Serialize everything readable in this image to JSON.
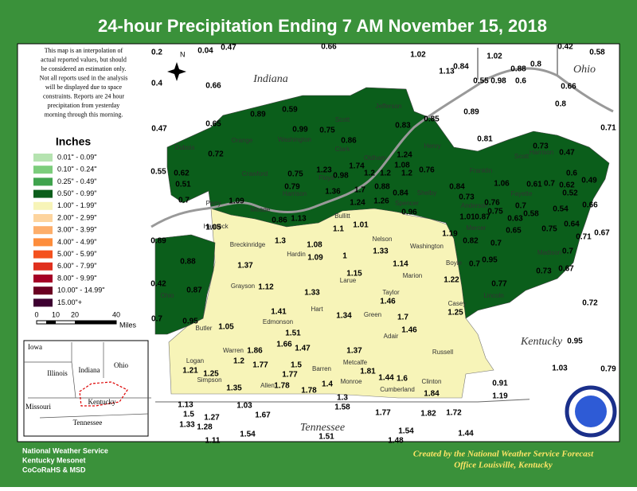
{
  "header": {
    "title": "24-hour Precipitation Ending 7 AM  November 15, 2018"
  },
  "disclaimer": [
    "This map is an interpolation of",
    "actual reported values, but should",
    "be considered an estimation only.",
    "Not all reports used in the analysis",
    "will be displayed due to space",
    "constraints. Reports are 24 hour",
    "precipitation from yesterday",
    "morning through this morning."
  ],
  "legend": {
    "title": "Inches",
    "items": [
      {
        "label": "0.01\" - 0.09\"",
        "color": "#b5e3b0"
      },
      {
        "label": "0.10\" - 0.24\"",
        "color": "#7ccd7c"
      },
      {
        "label": "0.25\" - 0.49\"",
        "color": "#3fa34d"
      },
      {
        "label": "0.50\" - 0.99\"",
        "color": "#0b5e1b"
      },
      {
        "label": "1.00\" - 1.99\"",
        "color": "#f7f4b8"
      },
      {
        "label": "2.00\" - 2.99\"",
        "color": "#fdd49e"
      },
      {
        "label": "3.00\" - 3.99\"",
        "color": "#fdae6b"
      },
      {
        "label": "4.00\" - 4.99\"",
        "color": "#fd8d3c"
      },
      {
        "label": "5.00\" - 5.99\"",
        "color": "#f4511e"
      },
      {
        "label": "6.00\" - 7.99\"",
        "color": "#e0301e"
      },
      {
        "label": "8.00\" - 9.99\"",
        "color": "#a50026"
      },
      {
        "label": "10.00\" - 14.99\"",
        "color": "#6b0022"
      },
      {
        "label": "15.00\"+",
        "color": "#3d0030"
      }
    ]
  },
  "scale": {
    "ticks": [
      "0",
      "10",
      "20",
      "40"
    ],
    "unit": "Miles"
  },
  "compass": "N",
  "states": [
    "Indiana",
    "Ohio",
    "Kentucky",
    "Tennessee"
  ],
  "inset": {
    "labels": [
      "Iowa",
      "Illinois",
      "Indiana",
      "Ohio",
      "Missouri",
      "Kentucky",
      "Tennessee"
    ]
  },
  "counties": [
    "Meade",
    "Bullitt",
    "Breckinridge",
    "Hardin",
    "Nelson",
    "Washington",
    "Grayson",
    "Larue",
    "Marion",
    "Taylor",
    "Hart",
    "Green",
    "Casey",
    "Edmonson",
    "Butler",
    "Adair",
    "Russell",
    "Logan",
    "Warren",
    "Barren",
    "Metcalfe",
    "Simpson",
    "Allen",
    "Monroe",
    "Cumberland",
    "Clinton",
    "Ohio",
    "Dubois",
    "Orange",
    "Washington",
    "Scott",
    "Jefferson",
    "Clark",
    "Floyd",
    "Oldham",
    "Henry",
    "Shelby",
    "Spencer",
    "Crawford",
    "Harrison",
    "Perry",
    "Hancock",
    "Franklin",
    "Anderson",
    "Mercer",
    "Boyle",
    "Lincoln",
    "Scott",
    "Harrison",
    "Fayette",
    "Madison"
  ],
  "observations": [
    0.2,
    0.04,
    0.47,
    0.66,
    1.02,
    0.42,
    0.58,
    1.13,
    0.84,
    1.02,
    0.88,
    0.8,
    0.55,
    0.98,
    0.6,
    0.66,
    0.66,
    0.4,
    0.8,
    0.89,
    0.59,
    0.85,
    0.89,
    0.71,
    0.47,
    0.65,
    0.99,
    0.75,
    0.83,
    0.86,
    0.81,
    0.73,
    0.47,
    0.72,
    0.55,
    0.62,
    0.51,
    0.75,
    0.79,
    1.23,
    1.74,
    1.24,
    1.08,
    0.98,
    1.2,
    1.2,
    1.2,
    0.76,
    1.06,
    0.61,
    0.7,
    0.6,
    0.49,
    0.62,
    0.52,
    0.7,
    1.36,
    1.7,
    0.88,
    0.84,
    0.84,
    0.73,
    0.76,
    0.75,
    0.7,
    0.58,
    0.54,
    0.66,
    1.09,
    1.24,
    1.26,
    0.96,
    1.01,
    0.87,
    0.63,
    0.64,
    0.86,
    1.13,
    1.1,
    1.01,
    1.19,
    0.65,
    0.75,
    0.71,
    0.67,
    0.89,
    1.05,
    1.3,
    1.08,
    1,
    1.33,
    0.82,
    0.7,
    0.88,
    1.37,
    1.09,
    1.14,
    0.95,
    0.7,
    0.7,
    0.67,
    0.73,
    1.15,
    1.22,
    0.77,
    0.42,
    0.87,
    1.12,
    1.33,
    1.46,
    0.72,
    1.25,
    1.41,
    1.34,
    1.7,
    0.95,
    0.7,
    1.05,
    1.51,
    1.46,
    0.95,
    1.66,
    1.47,
    1.86,
    1.2,
    1.77,
    1.5,
    1.37,
    1.03,
    0.79,
    1.21,
    1.25,
    1.77,
    1.81,
    1.44,
    1.6,
    0.91,
    1.35,
    1.78,
    1.4,
    1.78,
    1.84,
    1.19,
    1.3,
    1.13,
    1.03,
    1.58,
    1.77,
    1.82,
    1.72,
    1.5,
    1.27,
    1.67,
    1.33,
    1.28,
    1.54,
    1.54,
    1.51,
    1.44,
    1.48,
    1.11
  ],
  "credits": {
    "left": [
      "National Weather Service",
      "Kentucky Mesonet",
      "CoCoRaHS & MSD"
    ],
    "right": [
      "Created by the National Weather Service Forecast",
      "Office Louisville, Kentucky"
    ]
  }
}
